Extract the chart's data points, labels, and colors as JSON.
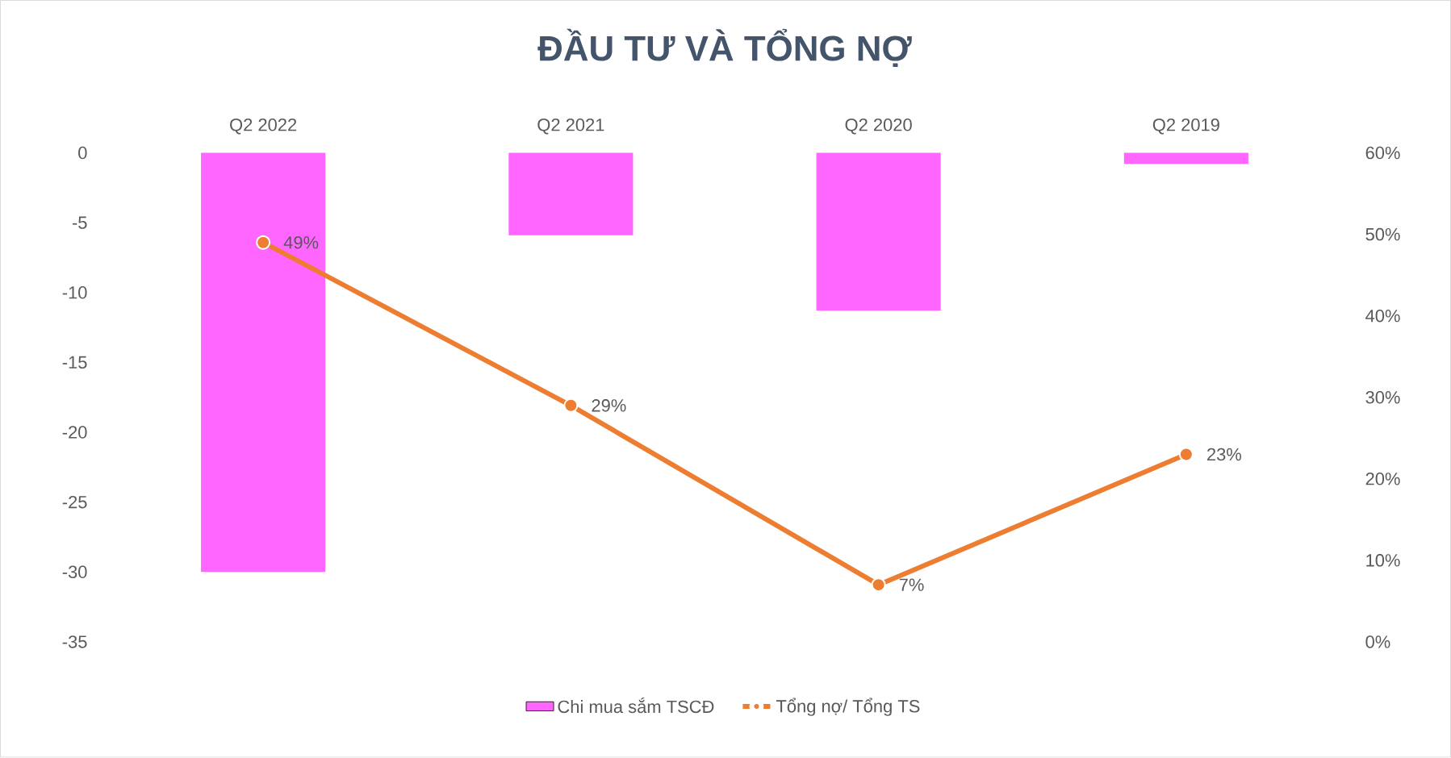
{
  "chart_data": {
    "type": "bar",
    "title": "ĐẦU TƯ VÀ TỔNG NỢ",
    "categories": [
      "Q2 2022",
      "Q2 2021",
      "Q2 2020",
      "Q2 2019"
    ],
    "series": [
      {
        "name": "Chi mua sắm TSCĐ",
        "color": "#ff66ff",
        "values": [
          -30,
          -5.9,
          -11.3,
          -0.8
        ]
      },
      {
        "name": "Tổng nợ/ Tổng TS",
        "type": "line",
        "axis": "y2",
        "color": "#ed7d31",
        "marker": "circle",
        "values": [
          49,
          29,
          7,
          23
        ],
        "value_labels": [
          "49%",
          "29%",
          "7%",
          "23%"
        ]
      }
    ],
    "ylim": [
      -35,
      0
    ],
    "yticks": [
      -35,
      -30,
      -25,
      -20,
      -15,
      -10,
      -5,
      0
    ],
    "y2lim": [
      0,
      60
    ],
    "y2ticks": [
      {
        "value": 0,
        "label": "0%"
      },
      {
        "value": 10,
        "label": "10%"
      },
      {
        "value": 20,
        "label": "20%"
      },
      {
        "value": 30,
        "label": "30%"
      },
      {
        "value": 40,
        "label": "40%"
      },
      {
        "value": 50,
        "label": "50%"
      },
      {
        "value": 60,
        "label": "60%"
      }
    ],
    "legend": "bottom",
    "grid": false
  }
}
